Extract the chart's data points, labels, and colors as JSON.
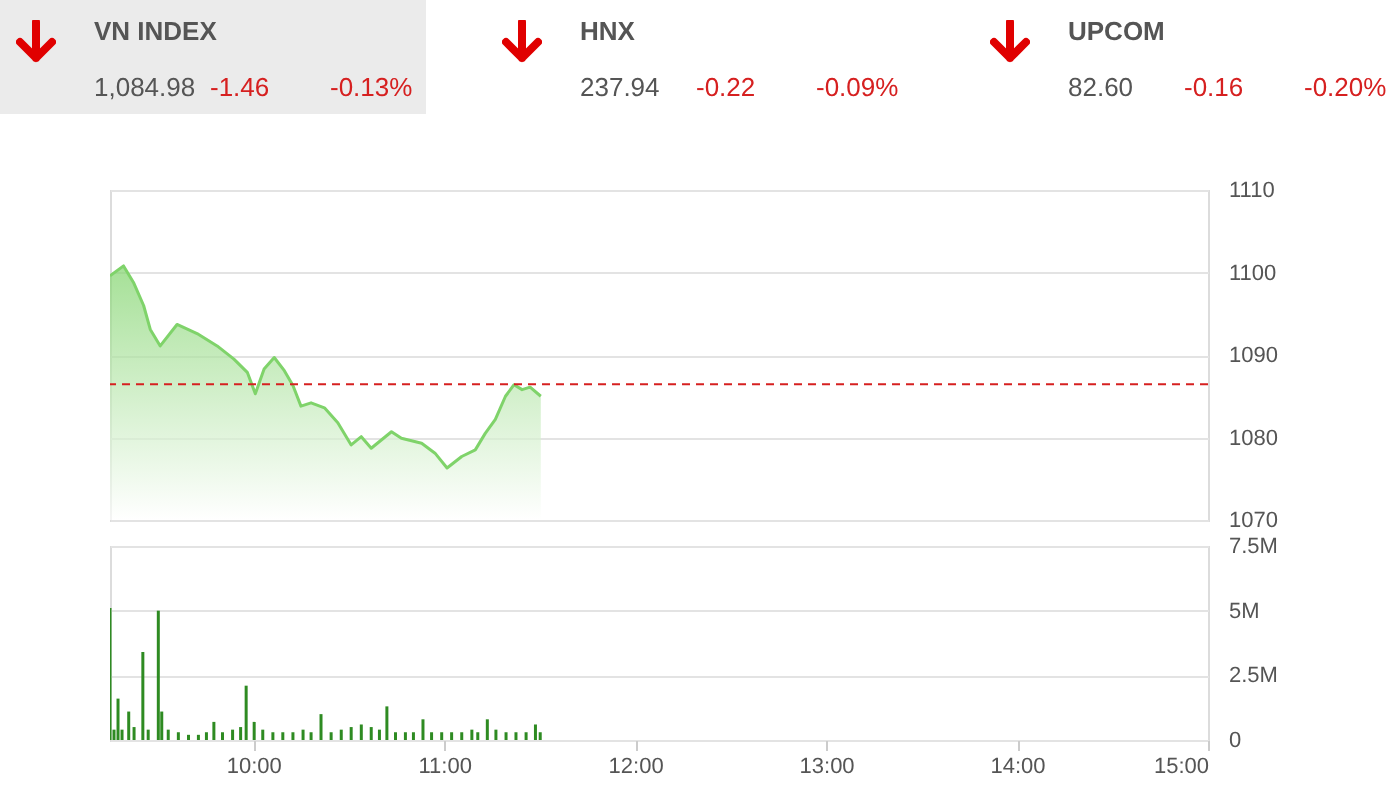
{
  "chart_data": [
    {
      "type": "area",
      "color": "#7fd36a",
      "annotations": [
        "VN INDEX",
        "1,084.98",
        "-1.46",
        "-0.13%",
        "HNX",
        "237.94",
        "-0.22",
        "-0.09%",
        "UPCOM",
        "82.60",
        "-0.16",
        "-0.20%"
      ],
      "x": [
        9.25,
        9.321,
        9.373,
        9.426,
        9.461,
        9.513,
        9.601,
        9.706,
        9.811,
        9.899,
        9.969,
        10.011,
        10.057,
        10.11,
        10.163,
        10.208,
        10.25,
        10.303,
        10.373,
        10.443,
        10.513,
        10.566,
        10.618,
        10.724,
        10.776,
        10.882,
        10.952,
        11.015,
        11.092,
        11.163,
        11.215,
        11.268,
        11.321,
        11.366,
        11.408,
        11.45,
        11.506
      ],
      "values": [
        1099.6,
        1100.8,
        1098.8,
        1096,
        1093.1,
        1091.1,
        1093.7,
        1092.6,
        1091.1,
        1089.5,
        1087.9,
        1085.3,
        1088.3,
        1089.7,
        1088.1,
        1086.3,
        1083.8,
        1084.2,
        1083.6,
        1081.8,
        1079.1,
        1080.1,
        1078.7,
        1080.7,
        1079.9,
        1079.3,
        1078.1,
        1076.3,
        1077.7,
        1078.5,
        1080.5,
        1082.2,
        1085,
        1086.4,
        1085.8,
        1086.1,
        1085
      ],
      "xlim": [
        9.25,
        15
      ],
      "ylim": [
        1070,
        1110
      ],
      "yticks": [
        1070,
        1080,
        1090,
        1100,
        1110
      ],
      "grid": "y",
      "tick_labels": "y",
      "ref_lines": [
        {
          "axis": "y",
          "value": 1086.44,
          "color": "#d62020",
          "line_style": "dashed"
        }
      ]
    },
    {
      "type": "bar",
      "color": "#2e8b22",
      "x": [
        9.25,
        9.271,
        9.292,
        9.313,
        9.348,
        9.376,
        9.422,
        9.45,
        9.503,
        9.521,
        9.555,
        9.608,
        9.661,
        9.713,
        9.755,
        9.794,
        9.839,
        9.892,
        9.934,
        9.963,
        10.005,
        10.05,
        10.103,
        10.155,
        10.208,
        10.261,
        10.303,
        10.355,
        10.408,
        10.461,
        10.513,
        10.566,
        10.618,
        10.661,
        10.7,
        10.745,
        10.797,
        10.839,
        10.889,
        10.934,
        10.987,
        11.039,
        11.092,
        11.145,
        11.176,
        11.226,
        11.271,
        11.324,
        11.376,
        11.429,
        11.478,
        11.503
      ],
      "values": [
        5.1,
        0.4,
        1.6,
        0.4,
        1.1,
        0.5,
        3.4,
        0.4,
        5.0,
        1.1,
        0.4,
        0.3,
        0.2,
        0.2,
        0.3,
        0.7,
        0.3,
        0.4,
        0.5,
        2.1,
        0.7,
        0.4,
        0.3,
        0.3,
        0.3,
        0.4,
        0.3,
        1.0,
        0.3,
        0.4,
        0.5,
        0.6,
        0.5,
        0.4,
        1.3,
        0.3,
        0.3,
        0.3,
        0.8,
        0.3,
        0.3,
        0.3,
        0.3,
        0.4,
        0.3,
        0.8,
        0.4,
        0.3,
        0.3,
        0.3,
        0.6,
        0.3
      ],
      "xlim": [
        9.25,
        15
      ],
      "xticks": [
        {
          "value": 10,
          "label": "10:00"
        },
        {
          "value": 11,
          "label": "11:00"
        },
        {
          "value": 12,
          "label": "12:00"
        },
        {
          "value": 13,
          "label": "13:00"
        },
        {
          "value": 14,
          "label": "14:00"
        },
        {
          "value": 15,
          "label": "15:00"
        }
      ],
      "ylim": [
        0,
        7.5
      ],
      "yticks": [
        0,
        {
          "value": 2.5,
          "label": "2.5M"
        },
        {
          "value": 5,
          "label": "5M"
        },
        {
          "value": 7.5,
          "label": "7.5M"
        }
      ],
      "grid": "y"
    }
  ]
}
